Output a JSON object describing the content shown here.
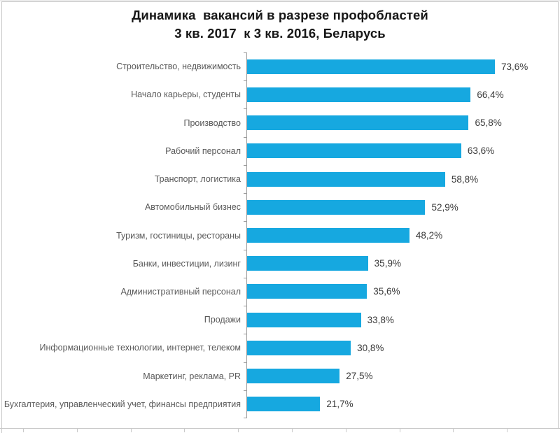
{
  "title": {
    "line1": "Динамика  вакансий в разрезе профобластей",
    "line2": "3 кв. 2017  к 3 кв. 2016, Беларусь"
  },
  "chart_data": {
    "type": "bar",
    "orientation": "horizontal",
    "title": "Динамика  вакансий в разрезе профобластей 3 кв. 2017  к 3 кв. 2016, Беларусь",
    "xlabel": "",
    "ylabel": "",
    "xlim": [
      0,
      80
    ],
    "grid": false,
    "legend": "none",
    "bar_color": "#16a8e0",
    "categories": [
      "Строительство, недвижимость",
      "Начало карьеры, студенты",
      "Производство",
      "Рабочий персонал",
      "Транспорт, логистика",
      "Автомобильный бизнес",
      "Туризм, гостиницы, рестораны",
      "Банки, инвестиции, лизинг",
      "Административный персонал",
      "Продажи",
      "Информационные технологии, интернет, телеком",
      "Маркетинг, реклама, PR",
      "Бухгалтерия, управленческий учет, финансы предприятия"
    ],
    "values": [
      73.6,
      66.4,
      65.8,
      63.6,
      58.8,
      52.9,
      48.2,
      35.9,
      35.6,
      33.8,
      30.8,
      27.5,
      21.7
    ],
    "value_labels": [
      "73,6%",
      "66,4%",
      "65,8%",
      "63,6%",
      "58,8%",
      "52,9%",
      "48,2%",
      "35,9%",
      "35,6%",
      "33,8%",
      "30,8%",
      "27,5%",
      "21,7%"
    ]
  },
  "colors": {
    "bar": "#16a8e0",
    "category_label": "#595959",
    "value_label": "#3a3a3a",
    "axis": "#9b9b9b",
    "frame": "#c9c9c9",
    "title": "#171717"
  }
}
